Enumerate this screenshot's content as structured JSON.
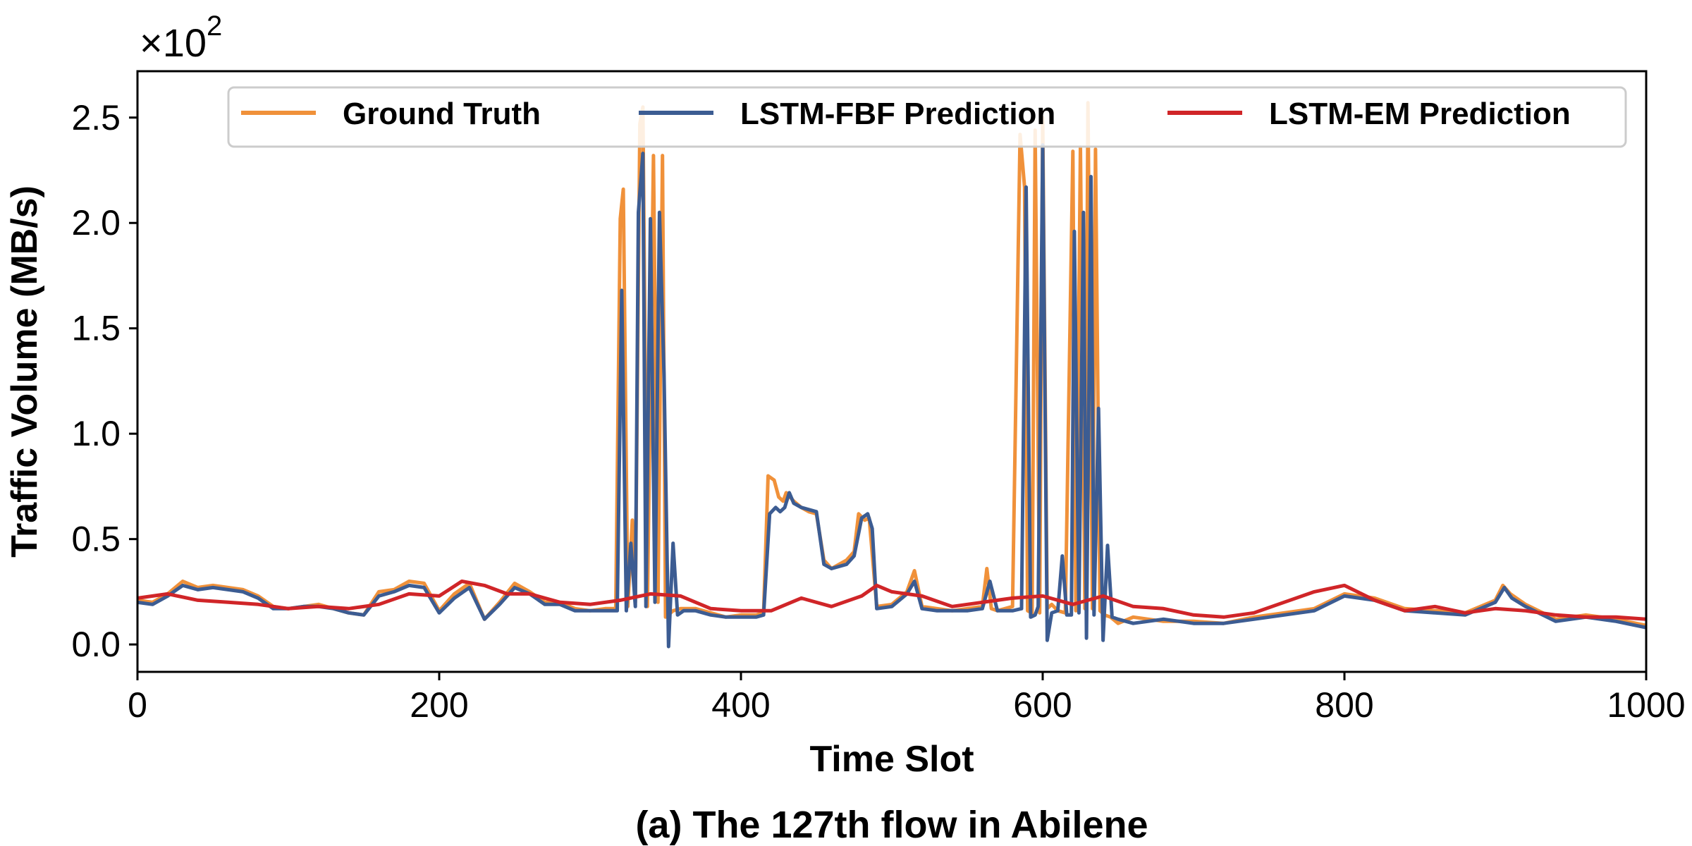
{
  "caption": "(a) The 127th flow in Abilene",
  "chart_data": {
    "type": "line",
    "title": "",
    "xlabel": "Time Slot",
    "ylabel": "Traffic Volume (MB/s)",
    "y_multiplier": {
      "base": "×10",
      "exponent": "2"
    },
    "xlim": [
      0,
      1000
    ],
    "ylim": [
      -0.13,
      2.72
    ],
    "x_ticks": [
      0,
      200,
      400,
      600,
      800,
      1000
    ],
    "x_tick_labels": [
      "0",
      "200",
      "400",
      "600",
      "800",
      "1000"
    ],
    "y_ticks": [
      0.0,
      0.5,
      1.0,
      1.5,
      2.0,
      2.5
    ],
    "y_tick_labels": [
      "0.0",
      "0.5",
      "1.0",
      "1.5",
      "2.0",
      "2.5"
    ],
    "grid": false,
    "legend": "top",
    "series": [
      {
        "name": "Ground Truth",
        "color": "#F0913A",
        "x": [
          0,
          10,
          20,
          30,
          40,
          50,
          60,
          70,
          80,
          90,
          100,
          110,
          120,
          130,
          140,
          150,
          160,
          170,
          180,
          190,
          200,
          210,
          220,
          230,
          240,
          250,
          260,
          270,
          280,
          290,
          300,
          310,
          317,
          320,
          322,
          325,
          328,
          330,
          333,
          335,
          338,
          342,
          345,
          348,
          350,
          355,
          360,
          370,
          380,
          390,
          400,
          410,
          415,
          418,
          422,
          425,
          428,
          430,
          435,
          440,
          445,
          450,
          455,
          460,
          465,
          470,
          475,
          478,
          482,
          485,
          490,
          500,
          510,
          515,
          520,
          530,
          540,
          550,
          560,
          563,
          566,
          570,
          580,
          585,
          588,
          590,
          593,
          595,
          598,
          600,
          603,
          606,
          610,
          615,
          620,
          622,
          625,
          628,
          630,
          633,
          635,
          638,
          641,
          645,
          650,
          660,
          680,
          700,
          720,
          740,
          760,
          780,
          800,
          820,
          840,
          860,
          880,
          900,
          905,
          910,
          920,
          940,
          960,
          980,
          1000
        ],
        "values": [
          0.21,
          0.2,
          0.24,
          0.3,
          0.27,
          0.28,
          0.27,
          0.26,
          0.23,
          0.18,
          0.17,
          0.18,
          0.19,
          0.17,
          0.15,
          0.14,
          0.25,
          0.26,
          0.3,
          0.29,
          0.16,
          0.24,
          0.29,
          0.12,
          0.2,
          0.29,
          0.25,
          0.2,
          0.2,
          0.17,
          0.16,
          0.17,
          0.17,
          2.02,
          2.16,
          0.18,
          0.59,
          0.2,
          2.47,
          2.55,
          0.18,
          2.32,
          0.2,
          2.32,
          0.13,
          0.16,
          0.17,
          0.17,
          0.15,
          0.13,
          0.14,
          0.14,
          0.15,
          0.8,
          0.78,
          0.7,
          0.68,
          0.72,
          0.68,
          0.65,
          0.63,
          0.62,
          0.4,
          0.36,
          0.38,
          0.4,
          0.44,
          0.62,
          0.59,
          0.6,
          0.18,
          0.19,
          0.25,
          0.35,
          0.18,
          0.17,
          0.16,
          0.17,
          0.18,
          0.36,
          0.17,
          0.16,
          0.18,
          2.42,
          2.17,
          0.16,
          0.15,
          2.44,
          0.15,
          2.5,
          0.17,
          0.19,
          0.16,
          0.15,
          2.34,
          0.16,
          2.36,
          0.17,
          2.57,
          0.17,
          2.35,
          0.16,
          0.14,
          0.13,
          0.1,
          0.13,
          0.11,
          0.11,
          0.1,
          0.13,
          0.15,
          0.17,
          0.24,
          0.22,
          0.17,
          0.16,
          0.15,
          0.21,
          0.28,
          0.24,
          0.19,
          0.12,
          0.14,
          0.12,
          0.09
        ]
      },
      {
        "name": "LSTM-FBF Prediction",
        "color": "#3C5C92",
        "x": [
          0,
          10,
          20,
          30,
          40,
          50,
          60,
          70,
          80,
          90,
          100,
          110,
          120,
          130,
          140,
          150,
          160,
          170,
          180,
          190,
          200,
          210,
          220,
          230,
          240,
          250,
          260,
          270,
          280,
          290,
          300,
          310,
          318,
          321,
          324,
          327,
          330,
          332,
          335,
          337,
          340,
          343,
          346,
          349,
          352,
          355,
          358,
          362,
          370,
          380,
          390,
          400,
          410,
          415,
          419,
          423,
          426,
          429,
          432,
          435,
          440,
          445,
          450,
          455,
          460,
          465,
          470,
          475,
          480,
          484,
          487,
          490,
          500,
          510,
          515,
          520,
          530,
          540,
          550,
          560,
          565,
          570,
          580,
          586,
          589,
          592,
          595,
          597,
          600,
          603,
          606,
          610,
          613,
          616,
          619,
          621,
          624,
          627,
          629,
          632,
          634,
          637,
          640,
          643,
          646,
          650,
          660,
          680,
          700,
          720,
          740,
          760,
          780,
          800,
          820,
          840,
          860,
          880,
          900,
          906,
          911,
          920,
          940,
          960,
          980,
          1000
        ],
        "values": [
          0.2,
          0.19,
          0.23,
          0.28,
          0.26,
          0.27,
          0.26,
          0.25,
          0.22,
          0.17,
          0.17,
          0.18,
          0.18,
          0.17,
          0.15,
          0.14,
          0.23,
          0.25,
          0.28,
          0.27,
          0.15,
          0.22,
          0.27,
          0.12,
          0.19,
          0.27,
          0.24,
          0.19,
          0.19,
          0.16,
          0.16,
          0.16,
          0.16,
          1.68,
          0.16,
          0.48,
          0.18,
          2.05,
          2.33,
          0.18,
          2.02,
          0.2,
          2.05,
          1.28,
          -0.01,
          0.48,
          0.14,
          0.16,
          0.16,
          0.14,
          0.13,
          0.13,
          0.13,
          0.14,
          0.62,
          0.65,
          0.63,
          0.65,
          0.72,
          0.67,
          0.65,
          0.64,
          0.63,
          0.38,
          0.36,
          0.37,
          0.38,
          0.42,
          0.6,
          0.62,
          0.55,
          0.17,
          0.18,
          0.24,
          0.3,
          0.17,
          0.16,
          0.16,
          0.16,
          0.17,
          0.3,
          0.16,
          0.16,
          0.17,
          2.17,
          0.13,
          0.14,
          0.18,
          2.37,
          0.02,
          0.15,
          0.16,
          0.42,
          0.14,
          0.14,
          1.96,
          0.15,
          2.05,
          0.03,
          2.22,
          0.14,
          1.12,
          0.02,
          0.47,
          0.13,
          0.12,
          0.1,
          0.12,
          0.1,
          0.1,
          0.12,
          0.14,
          0.16,
          0.23,
          0.21,
          0.16,
          0.15,
          0.14,
          0.2,
          0.27,
          0.22,
          0.18,
          0.11,
          0.13,
          0.11,
          0.08
        ]
      },
      {
        "name": "LSTM-EM Prediction",
        "color": "#D02528",
        "x": [
          0,
          20,
          40,
          60,
          80,
          100,
          120,
          140,
          160,
          180,
          200,
          215,
          230,
          245,
          260,
          280,
          300,
          320,
          340,
          360,
          380,
          400,
          420,
          440,
          460,
          480,
          490,
          500,
          520,
          540,
          560,
          580,
          600,
          620,
          640,
          660,
          680,
          700,
          720,
          740,
          760,
          780,
          800,
          820,
          840,
          860,
          880,
          900,
          920,
          940,
          960,
          980,
          1000
        ],
        "values": [
          0.22,
          0.24,
          0.21,
          0.2,
          0.19,
          0.17,
          0.18,
          0.17,
          0.19,
          0.24,
          0.23,
          0.3,
          0.28,
          0.24,
          0.24,
          0.2,
          0.19,
          0.21,
          0.24,
          0.23,
          0.17,
          0.16,
          0.16,
          0.22,
          0.18,
          0.23,
          0.28,
          0.25,
          0.23,
          0.18,
          0.2,
          0.22,
          0.23,
          0.19,
          0.23,
          0.18,
          0.17,
          0.14,
          0.13,
          0.15,
          0.2,
          0.25,
          0.28,
          0.21,
          0.16,
          0.18,
          0.15,
          0.17,
          0.16,
          0.14,
          0.13,
          0.13,
          0.12
        ]
      }
    ]
  }
}
